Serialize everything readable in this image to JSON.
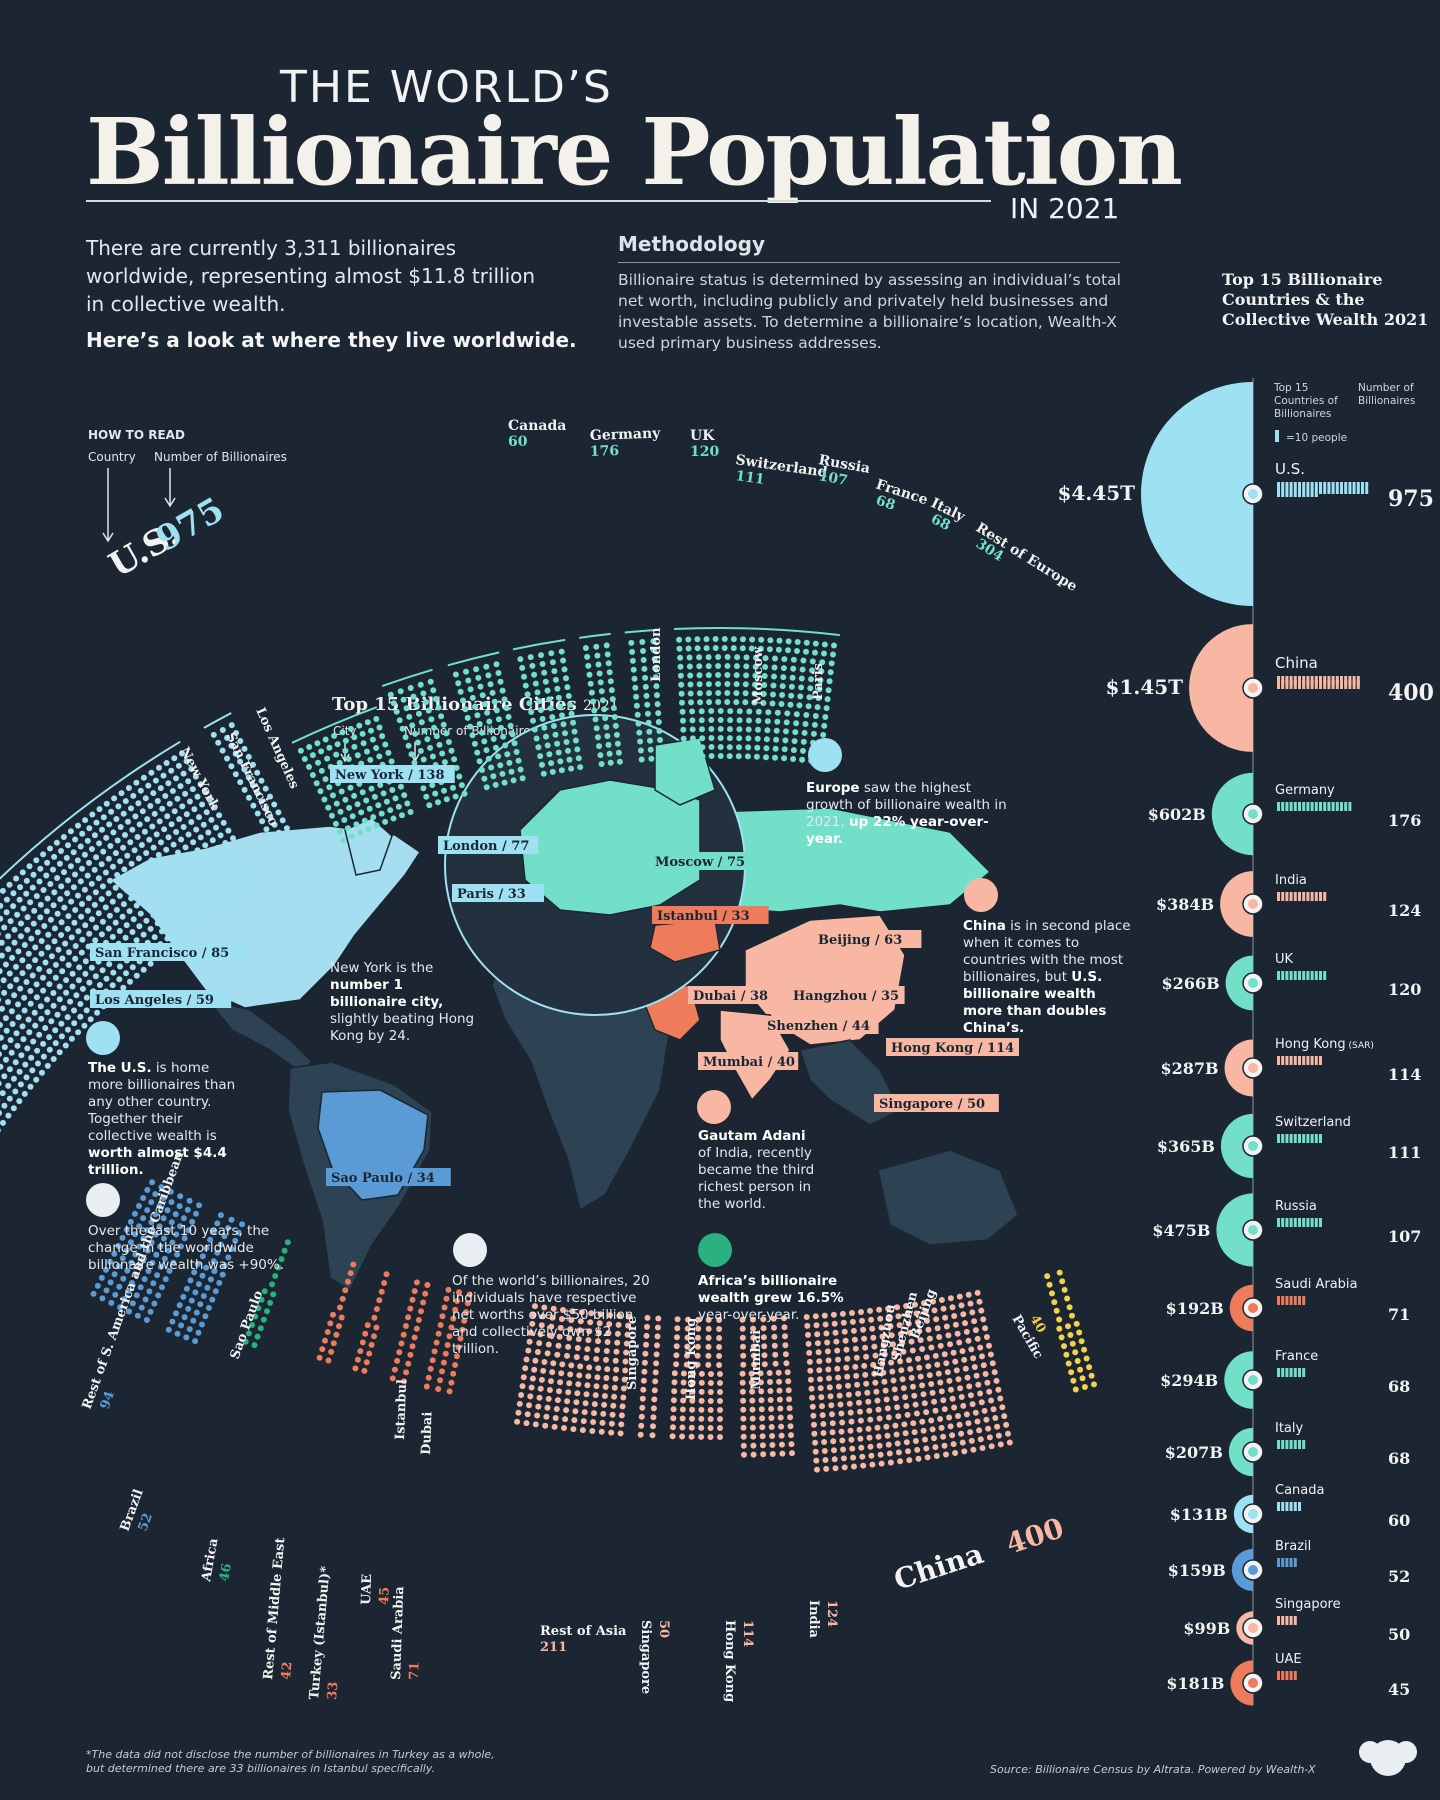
{
  "header": {
    "title_small": "THE WORLD’S",
    "title_big": "Billionaire Population",
    "title_year": "IN 2021",
    "intro": "There are currently 3,311 billionaires worldwide, representing almost $11.8 trillion in collective wealth.",
    "intro_bold": "Here’s a look at where they live worldwide.",
    "methodology_heading": "Methodology",
    "methodology_text": "Billionaire status is determined by assessing an individual’s total net worth, including publicly and privately held businesses and investable assets. To determine a billionaire’s location, Wealth-X used primary business addresses."
  },
  "how_to_read": {
    "title": "HOW TO READ",
    "country": "Country",
    "number": "Number of Billionaires"
  },
  "cities_legend": {
    "title": "Top 15 Billionaire Cities",
    "year": "2021",
    "city": "City",
    "number": "Number of Billionaires",
    "example": "New York / 138"
  },
  "top15_panel": {
    "title": "Top 15 Billionaire Countries & the Collective Wealth 2021",
    "col_countries": "Top 15 Countries of Billionaires",
    "col_number": "Number of Billionaires",
    "icon_legend": "=10 people"
  },
  "notes": {
    "europe": "<b>Europe</b> saw the highest growth of billionaire wealth in 2021, <b>up 22% year-over-year.</b>",
    "china": "<b>China</b> is in second place when it comes to countries with the most billionaires, but <b>U.S. billionaire wealth more than doubles China’s.</b>",
    "newyork": "New York is the <b>number 1 billionaire city,</b> slightly beating Hong Kong by 24.",
    "us": "<b>The U.S.</b> is home more billionaires than any other country. Together their collective wealth is <b>worth almost $4.4 trillion.</b>",
    "tenyears": "Over the last 10 years, the change in the worldwide billionaire wealth was +90%.",
    "adani": "<b>Gautam Adani</b> of India, recently became the third richest person in the world.",
    "twenty": "Of the world’s billionaires, 20 individuals have respective net worths over $50 billion and collectively own $2 trillion.",
    "africa": "<b>Africa’s billionaire wealth grew 16.5%</b> year-over-year."
  },
  "cities": [
    {
      "label": "New York / 138"
    },
    {
      "label": "London / 77"
    },
    {
      "label": "Paris / 33"
    },
    {
      "label": "Moscow / 75"
    },
    {
      "label": "Istanbul / 33"
    },
    {
      "label": "Beijing / 63"
    },
    {
      "label": "San Francisco / 85"
    },
    {
      "label": "Los Angeles / 59"
    },
    {
      "label": "Dubai / 38"
    },
    {
      "label": "Hangzhou / 35"
    },
    {
      "label": "Shenzhen / 44"
    },
    {
      "label": "Mumbai / 40"
    },
    {
      "label": "Hong Kong / 114"
    },
    {
      "label": "Singapore / 50"
    },
    {
      "label": "Sao Paulo / 34"
    }
  ],
  "top_arc": {
    "us_label": "U.S.",
    "us_value": "975",
    "groups": [
      {
        "name": "Canada",
        "value": "60"
      },
      {
        "name": "Germany",
        "value": "176"
      },
      {
        "name": "UK",
        "value": "120"
      },
      {
        "name": "Switzerland",
        "value": "111"
      },
      {
        "name": "Russia",
        "value": "107"
      },
      {
        "name": "France",
        "value": "68"
      },
      {
        "name": "Italy",
        "value": "68"
      },
      {
        "name": "Rest of Europe",
        "value": "304"
      }
    ],
    "city_labels": [
      "New York",
      "San Francisco",
      "Los Angeles",
      "London",
      "Moscow",
      "Paris"
    ]
  },
  "bottom_arc": {
    "groups": [
      {
        "name": "Rest of S. America and the Caribbean",
        "value": "94"
      },
      {
        "name": "Sao Paulo",
        "value": ""
      },
      {
        "name": "Brazil",
        "value": "52"
      },
      {
        "name": "Africa",
        "value": "46"
      },
      {
        "name": "Rest of Middle East",
        "value": "42"
      },
      {
        "name": "Turkey (Istanbul)*",
        "value": "33"
      },
      {
        "name": "UAE",
        "value": "45"
      },
      {
        "name": "Saudi Arabia",
        "value": "71"
      },
      {
        "name": "Istanbul",
        "value": ""
      },
      {
        "name": "Dubai",
        "value": ""
      },
      {
        "name": "Rest of Asia",
        "value": "211"
      },
      {
        "name": "Singapore",
        "value": "50"
      },
      {
        "name": "Hong Kong",
        "value": "114"
      },
      {
        "name": "India",
        "value": "124"
      },
      {
        "name": "China",
        "value": "400"
      },
      {
        "name": "Pacific",
        "value": "40"
      },
      {
        "name": "Singapore",
        "value": ""
      },
      {
        "name": "Hong Kong",
        "value": ""
      },
      {
        "name": "Mumbai",
        "value": ""
      },
      {
        "name": "Hangzhou",
        "value": ""
      },
      {
        "name": "Shenzhen",
        "value": ""
      },
      {
        "name": "Beijing",
        "value": ""
      }
    ]
  },
  "chart_data": {
    "type": "bar",
    "title": "Top 15 Billionaire Countries & the Collective Wealth 2021",
    "categories": [
      "U.S.",
      "China",
      "Germany",
      "India",
      "UK",
      "Hong Kong (SAR)",
      "Switzerland",
      "Russia",
      "Saudi Arabia",
      "France",
      "Italy",
      "Canada",
      "Brazil",
      "Singapore",
      "UAE"
    ],
    "series": [
      {
        "name": "Number of Billionaires",
        "values": [
          975,
          400,
          176,
          124,
          120,
          114,
          111,
          107,
          71,
          68,
          68,
          60,
          52,
          50,
          45
        ]
      },
      {
        "name": "Collective Wealth ($B)",
        "values": [
          4450,
          1450,
          602,
          384,
          266,
          287,
          365,
          475,
          192,
          294,
          207,
          131,
          159,
          99,
          181
        ]
      }
    ],
    "wealth_labels": [
      "$4.45T",
      "$1.45T",
      "$602B",
      "$384B",
      "$266B",
      "$287B",
      "$365B",
      "$475B",
      "$192B",
      "$294B",
      "$207B",
      "$131B",
      "$159B",
      "$99B",
      "$181B"
    ],
    "country_labels": [
      "U.S.",
      "China",
      "Germany",
      "India",
      "UK",
      "Hong Kong",
      "Switzerland",
      "Russia",
      "Saudi Arabia",
      "France",
      "Italy",
      "Canada",
      "Brazil",
      "Singapore",
      "UAE"
    ],
    "country_label_suffix": [
      "",
      "",
      "",
      "",
      "",
      "(SAR)",
      "",
      "",
      "",
      "",
      "",
      "",
      "",
      "",
      ""
    ],
    "region_colors": [
      "#9ee1f3",
      "#f7b7a3",
      "#72e0c9",
      "#f7b7a3",
      "#72e0c9",
      "#f7b7a3",
      "#72e0c9",
      "#72e0c9",
      "#ee7b5a",
      "#72e0c9",
      "#72e0c9",
      "#9ee1f3",
      "#5b9bd5",
      "#f7b7a3",
      "#ee7b5a"
    ],
    "colors": {
      "north_america": "#9ee1f3",
      "europe": "#72e0c9",
      "asia": "#f7b7a3",
      "middle_east": "#ee7b5a",
      "south_america": "#5b9bd5",
      "africa": "#2bb07f",
      "pacific": "#f3d14a"
    }
  },
  "footer": {
    "footnote": "*The data did not disclose the number of billionaires in Turkey as a whole, but determined there are 33 billionaires in Istanbul specifically.",
    "source": "Source: Billionaire Census by Altrata. Powered by Wealth-X"
  }
}
